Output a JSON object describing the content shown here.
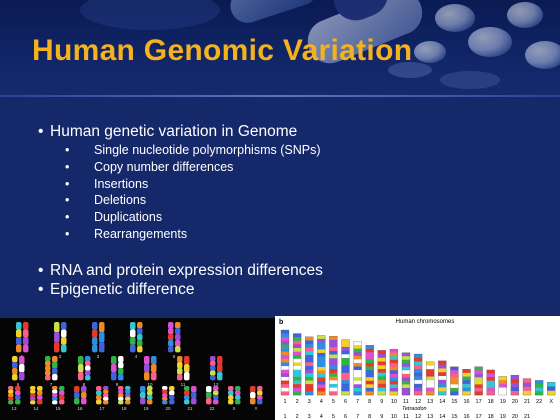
{
  "slide": {
    "title": "Human Genomic Variation",
    "bullets": [
      {
        "text": "Human genetic variation in Genome"
      },
      {
        "text": "RNA and protein expression differences"
      },
      {
        "text": "Epigenetic difference"
      }
    ],
    "sub_bullets": [
      "Single nucleotide polymorphisms (SNPs)",
      "Copy number differences",
      "Insertions",
      "Deletions",
      "Duplications",
      "Rearrangements"
    ],
    "bullet_symbol": "•"
  },
  "karyotype_figure": {
    "labels": [
      "1",
      "2",
      "3",
      "4",
      "5",
      "6",
      "7",
      "8",
      "9",
      "10",
      "11",
      "12",
      "13",
      "14",
      "15",
      "16",
      "17",
      "18",
      "19",
      "20",
      "21",
      "22",
      "X",
      "Y"
    ]
  },
  "chromosome_figure": {
    "panel_label": "b",
    "top_title": "Human chromosomes",
    "top_numbers": [
      "1",
      "2",
      "3",
      "4",
      "5",
      "6",
      "7",
      "8",
      "9",
      "10",
      "11",
      "12",
      "13",
      "14",
      "15",
      "16",
      "17",
      "18",
      "19",
      "20",
      "21",
      "22",
      "X"
    ],
    "bottom_title": "Tetraodon",
    "bottom_numbers": [
      "1",
      "2",
      "3",
      "4",
      "5",
      "6",
      "7",
      "8",
      "9",
      "10",
      "11",
      "12",
      "13",
      "14",
      "15",
      "16",
      "17",
      "18",
      "19",
      "20",
      "21"
    ]
  },
  "colors": {
    "background": "#15286a",
    "title": "#f5b21c",
    "body_text": "#ffffff"
  }
}
